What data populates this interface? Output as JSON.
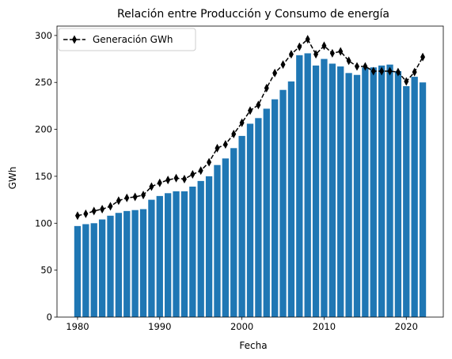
{
  "chart_data": {
    "type": "bar",
    "title": "Relación entre Producción y Consumo de energía",
    "xlabel": "Fecha",
    "ylabel": "GWh",
    "xlim": [
      1977.5,
      2024.5
    ],
    "ylim": [
      0,
      310
    ],
    "xticks": [
      1980,
      1990,
      2000,
      2010,
      2020
    ],
    "yticks": [
      0,
      50,
      100,
      150,
      200,
      250,
      300
    ],
    "grid": false,
    "legend": {
      "position": "top-left",
      "entries": [
        "Generación GWh"
      ]
    },
    "colors": {
      "bars": "#1f77b4",
      "line": "#000000"
    },
    "x": [
      1980,
      1981,
      1982,
      1983,
      1984,
      1985,
      1986,
      1987,
      1988,
      1989,
      1990,
      1991,
      1992,
      1993,
      1994,
      1995,
      1996,
      1997,
      1998,
      1999,
      2000,
      2001,
      2002,
      2003,
      2004,
      2005,
      2006,
      2007,
      2008,
      2009,
      2010,
      2011,
      2012,
      2013,
      2014,
      2015,
      2016,
      2017,
      2018,
      2019,
      2020,
      2021,
      2022
    ],
    "series": [
      {
        "type": "bar",
        "values": [
          97,
          99,
          100,
          104,
          108,
          111,
          113,
          114,
          115,
          125,
          129,
          132,
          134,
          134,
          139,
          145,
          150,
          162,
          169,
          180,
          193,
          206,
          212,
          222,
          232,
          242,
          251,
          279,
          281,
          268,
          275,
          270,
          267,
          260,
          258,
          266,
          266,
          268,
          269,
          262,
          246,
          256,
          250
        ]
      },
      {
        "type": "line",
        "name": "Generación GWh",
        "marker": "thin-diamond",
        "linestyle": "dashed",
        "values": [
          108,
          110,
          113,
          115,
          118,
          124,
          127,
          128,
          130,
          139,
          143,
          146,
          148,
          147,
          152,
          156,
          165,
          180,
          184,
          195,
          207,
          220,
          226,
          244,
          260,
          269,
          280,
          288,
          296,
          280,
          289,
          281,
          283,
          273,
          267,
          267,
          262,
          262,
          262,
          261,
          251,
          261,
          277
        ]
      }
    ]
  }
}
